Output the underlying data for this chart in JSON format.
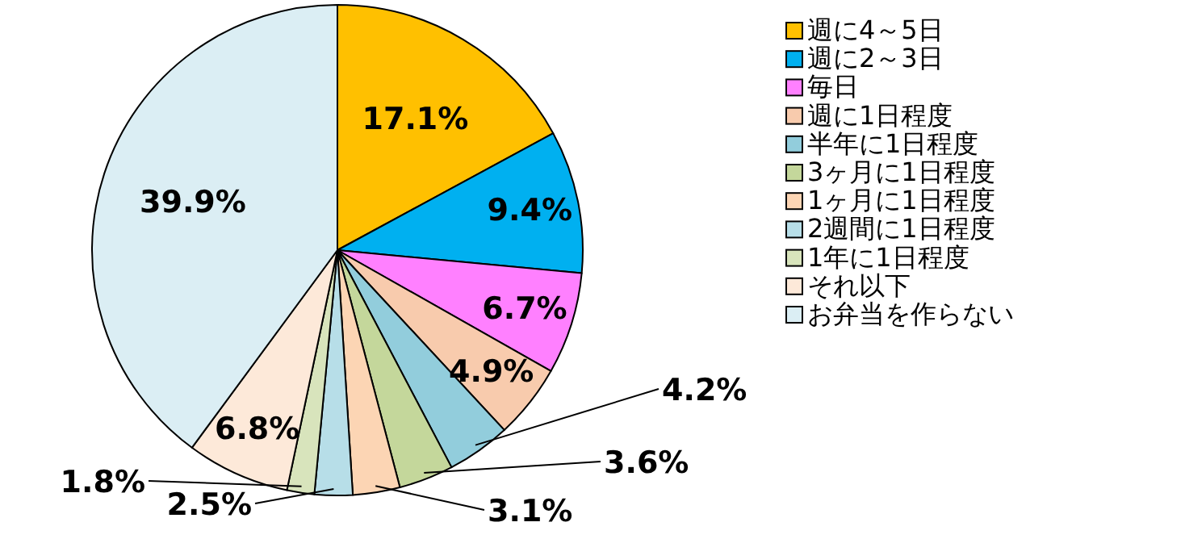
{
  "chart_data": {
    "type": "pie",
    "categories": [
      "週に4～5日",
      "週に2～3日",
      "毎日",
      "週に1日程度",
      "半年に1日程度",
      "3ヶ月に1日程度",
      "1ヶ月に1日程度",
      "2週間に1日程度",
      "1年に1日程度",
      "それ以下",
      "お弁当を作らない"
    ],
    "values": [
      17.1,
      9.4,
      6.7,
      4.9,
      4.2,
      3.6,
      3.1,
      2.5,
      1.8,
      6.8,
      39.9
    ],
    "colors": [
      "#ffc000",
      "#00b0f0",
      "#ff80ff",
      "#f8cbad",
      "#92cddc",
      "#c4d79b",
      "#fcd5b4",
      "#b7dee8",
      "#d8e4bc",
      "#fde9d9",
      "#dbeef4"
    ],
    "value_labels": [
      "17.1%",
      "9.4%",
      "6.7%",
      "4.9%",
      "4.2%",
      "3.6%",
      "3.1%",
      "2.5%",
      "1.8%",
      "6.8%",
      "39.9%"
    ],
    "legend": "right"
  }
}
